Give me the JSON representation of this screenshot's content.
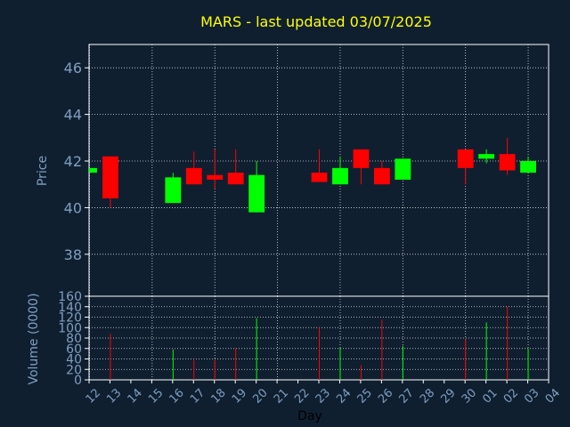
{
  "chart_data": {
    "type": "candlestick",
    "title": "MARS - last updated 03/07/2025",
    "xlabel": "Day",
    "ylabel_price": "Price",
    "ylabel_volume": "Volume (0000)",
    "categories": [
      "12",
      "13",
      "14",
      "15",
      "16",
      "17",
      "18",
      "19",
      "20",
      "21",
      "22",
      "23",
      "24",
      "25",
      "26",
      "27",
      "28",
      "29",
      "30",
      "01",
      "02",
      "03",
      "04"
    ],
    "price_ylim": [
      36.2,
      47
    ],
    "price_ticks": [
      38,
      40,
      42,
      44,
      46
    ],
    "volume_ylim": [
      0,
      160
    ],
    "volume_ticks": [
      0,
      20,
      40,
      60,
      80,
      100,
      120,
      140,
      160
    ],
    "grid": true,
    "colors": {
      "up": "#00ff00",
      "down": "#ff0000",
      "background": "#0f1f30",
      "title": "#ffff00",
      "axis": "#7f9fbf"
    },
    "candles": [
      {
        "day": "12",
        "open": 41.5,
        "close": 41.7,
        "high": 41.7,
        "low": 41.5,
        "volume": 0,
        "partial": true
      },
      {
        "day": "13",
        "open": 42.2,
        "close": 40.4,
        "high": 42.2,
        "low": 40.0,
        "volume": 88
      },
      {
        "day": "16",
        "open": 40.2,
        "close": 41.3,
        "high": 41.5,
        "low": 40.2,
        "volume": 58
      },
      {
        "day": "17",
        "open": 41.7,
        "close": 41.0,
        "high": 42.4,
        "low": 41.0,
        "volume": 38
      },
      {
        "day": "18",
        "open": 41.4,
        "close": 41.2,
        "high": 42.5,
        "low": 40.8,
        "volume": 38
      },
      {
        "day": "19",
        "open": 41.5,
        "close": 41.0,
        "high": 42.5,
        "low": 41.0,
        "volume": 60
      },
      {
        "day": "20",
        "open": 39.8,
        "close": 41.4,
        "high": 42.0,
        "low": 39.8,
        "volume": 118
      },
      {
        "day": "23",
        "open": 41.5,
        "close": 41.1,
        "high": 42.5,
        "low": 41.1,
        "volume": 100
      },
      {
        "day": "24",
        "open": 41.0,
        "close": 41.7,
        "high": 42.2,
        "low": 41.0,
        "volume": 62
      },
      {
        "day": "25",
        "open": 42.5,
        "close": 41.7,
        "high": 42.5,
        "low": 41.0,
        "volume": 28
      },
      {
        "day": "26",
        "open": 41.7,
        "close": 41.0,
        "high": 42.0,
        "low": 41.0,
        "volume": 115
      },
      {
        "day": "27",
        "open": 41.2,
        "close": 42.1,
        "high": 42.1,
        "low": 41.2,
        "volume": 65
      },
      {
        "day": "30",
        "open": 42.5,
        "close": 41.7,
        "high": 42.5,
        "low": 41.0,
        "volume": 78
      },
      {
        "day": "01",
        "open": 42.1,
        "close": 42.3,
        "high": 42.5,
        "low": 41.9,
        "volume": 110
      },
      {
        "day": "02",
        "open": 42.3,
        "close": 41.6,
        "high": 43.0,
        "low": 41.4,
        "volume": 140
      },
      {
        "day": "03",
        "open": 41.5,
        "close": 42.0,
        "high": 42.2,
        "low": 41.5,
        "volume": 60
      }
    ]
  }
}
